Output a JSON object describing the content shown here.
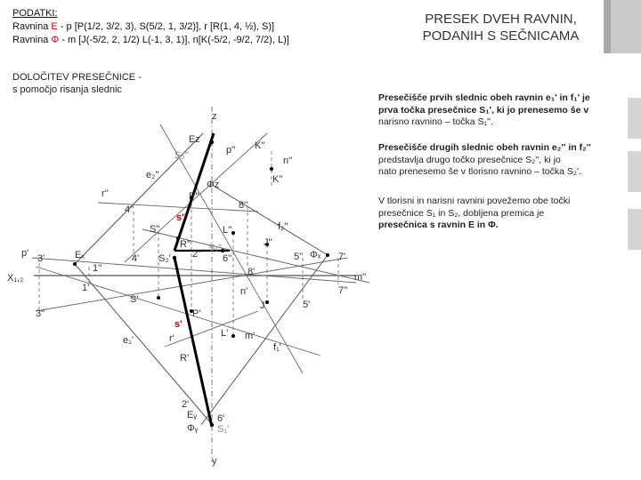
{
  "header": {
    "title_line1": "PRESEK DVEH RAVNIN,",
    "title_line2": "PODANIH S SEČNICAMA"
  },
  "data_block": {
    "heading": "PODATKI:",
    "line1_prefix": "Ravnina ",
    "line1_name": "E",
    "line1_rest": " - p [P(1/2, 3/2, 3), S(5/2, 1, 3/2)], r [R(1, 4, ½), S)]",
    "line2_prefix": "Ravnina ",
    "line2_name": "Φ",
    "line2_rest": " - m [J(-5/2, 2, 1/2) L(-1, 3, 1)], n[K(-5/2, -9/2, 7/2), L)]"
  },
  "method": {
    "line1": "DOLOČITEV PRESEČNICE -",
    "line2": "s pomočjo risanja slednic"
  },
  "info": {
    "p1_a": "Presečišče prvih slednic obeh ravnin e₁' in f₁' je",
    "p1_b": "prva točka presečnice S₁', ki jo prenesemo še v",
    "p1_c": "narisno ravnino – točka S₁''.",
    "p2_a": "Presečišče drugih slednic obeh ravnin e₂'' in f₂''",
    "p2_b": "predstavlja drugo točko presečnice S₂'', ki jo",
    "p2_c": "nato prenesemo še v tlorisno ravnino – točka S₂'.",
    "p3_a": "V tlorisni in narisni ravnini povežemo obe točki",
    "p3_b": "presečnice S₁ in S₂, dobljena premica je",
    "p3_c": "presečnica s ravnin E in Φ."
  },
  "labels": {
    "z": "z",
    "y": "y",
    "x12": "X₁,₂",
    "Ez": "Eᴢ",
    "S2pp": "S₂''",
    "pp": "p''",
    "Kpp": "K''",
    "npp": "n''",
    "Kpp2": "K''",
    "e2pp": "e₂''",
    "Phiz": "Φᴢ",
    "Ppp": "P''",
    "rpp": "r''",
    "8pp": "8''",
    "4pp": "4''",
    "spp": "s''",
    "Spp": "S''",
    "Lpp": "L''",
    "f2pp": "f₂''",
    "Rpp": "R''",
    "Jpp": "J''",
    "ppr": "p'",
    "3p": "3'",
    "Ex": "Eₓ",
    "4p": "4'",
    "S2p": "S₂'",
    "2pp": "2''",
    "S1pp": "S₁''",
    "6pp": "6''",
    "5pp": "5''",
    "Phix": "Φₓ",
    "7p": "7'",
    "1pp": "1''",
    "8p": "8'",
    "mpp": "m''",
    "1p": "1'",
    "np": "n'",
    "7pp": "7''",
    "Sp": "S'",
    "Jp": "J'",
    "5p": "5'",
    "3pp": "3''",
    "Pp": "P'",
    "sp": "s'",
    "e1p": "e₁'",
    "rp": "r'",
    "Lp": "L'",
    "mp": "m'",
    "f1p": "f₁'",
    "Rp": "R'",
    "2p": "2'",
    "Ey": "Eᵧ",
    "Phiy": "Φᵧ",
    "6p": "6'",
    "S1p": "S₁'"
  },
  "colors": {
    "accent": "#c9c9c9",
    "highlight": "#c00000",
    "line": "#555555",
    "bold_line": "#000000"
  }
}
